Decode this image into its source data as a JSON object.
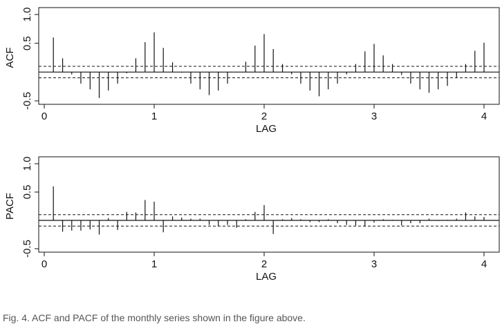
{
  "chart_data": [
    {
      "type": "bar",
      "subtype": "correlogram",
      "ylabel": "ACF",
      "xlabel": "LAG",
      "xlim": [
        0,
        4
      ],
      "ylim": [
        -0.5,
        1.0
      ],
      "xticks": [
        "0",
        "1",
        "2",
        "3",
        "4"
      ],
      "yticks": [
        "-0.5",
        "0.5",
        "1.0"
      ],
      "confidence_band": 0.1,
      "zero_line": true,
      "x": [
        0.083,
        0.167,
        0.25,
        0.333,
        0.417,
        0.5,
        0.583,
        0.667,
        0.75,
        0.833,
        0.917,
        1.0,
        1.083,
        1.167,
        1.25,
        1.333,
        1.417,
        1.5,
        1.583,
        1.667,
        1.75,
        1.833,
        1.917,
        2.0,
        2.083,
        2.167,
        2.25,
        2.333,
        2.417,
        2.5,
        2.583,
        2.667,
        2.75,
        2.833,
        2.917,
        3.0,
        3.083,
        3.167,
        3.25,
        3.333,
        3.417,
        3.5,
        3.583,
        3.667,
        3.75,
        3.833,
        3.917,
        4.0
      ],
      "values": [
        0.6,
        0.24,
        -0.04,
        -0.2,
        -0.3,
        -0.45,
        -0.32,
        -0.2,
        -0.02,
        0.24,
        0.52,
        0.69,
        0.42,
        0.17,
        -0.01,
        -0.2,
        -0.3,
        -0.4,
        -0.32,
        -0.2,
        0.0,
        0.18,
        0.46,
        0.66,
        0.4,
        0.14,
        -0.04,
        -0.2,
        -0.32,
        -0.42,
        -0.3,
        -0.2,
        -0.04,
        0.14,
        0.36,
        0.49,
        0.29,
        0.14,
        -0.05,
        -0.2,
        -0.3,
        -0.36,
        -0.3,
        -0.24,
        -0.1,
        0.14,
        0.37,
        0.51
      ]
    },
    {
      "type": "bar",
      "subtype": "correlogram",
      "ylabel": "PACF",
      "xlabel": "LAG",
      "xlim": [
        0,
        4
      ],
      "ylim": [
        -0.5,
        1.0
      ],
      "xticks": [
        "0",
        "1",
        "2",
        "3",
        "4"
      ],
      "yticks": [
        "-0.5",
        "0.5",
        "1.0"
      ],
      "confidence_band": 0.1,
      "zero_line": true,
      "x": [
        0.083,
        0.167,
        0.25,
        0.333,
        0.417,
        0.5,
        0.583,
        0.667,
        0.75,
        0.833,
        0.917,
        1.0,
        1.083,
        1.167,
        1.25,
        1.333,
        1.417,
        1.5,
        1.583,
        1.667,
        1.75,
        1.833,
        1.917,
        2.0,
        2.083,
        2.167,
        2.25,
        2.333,
        2.417,
        2.5,
        2.583,
        2.667,
        2.75,
        2.833,
        2.917,
        3.0,
        3.083,
        3.167,
        3.25,
        3.333,
        3.417,
        3.5,
        3.583,
        3.667,
        3.75,
        3.833,
        3.917,
        4.0
      ],
      "values": [
        0.6,
        -0.2,
        -0.18,
        -0.18,
        -0.16,
        -0.25,
        0.04,
        -0.17,
        0.15,
        0.14,
        0.36,
        0.33,
        -0.21,
        0.07,
        0.05,
        0.03,
        0.03,
        -0.08,
        -0.1,
        -0.08,
        -0.13,
        0.02,
        0.15,
        0.27,
        -0.24,
        0.02,
        0.04,
        0.02,
        -0.03,
        -0.03,
        0.02,
        -0.05,
        -0.08,
        -0.09,
        -0.11,
        -0.04,
        0.02,
        0.01,
        -0.09,
        -0.05,
        -0.05,
        0.03,
        -0.01,
        0.01,
        0.03,
        0.14,
        0.07,
        0.06
      ]
    }
  ],
  "caption": "Fig. 4. ACF and PACF of the monthly series shown in the figure above."
}
